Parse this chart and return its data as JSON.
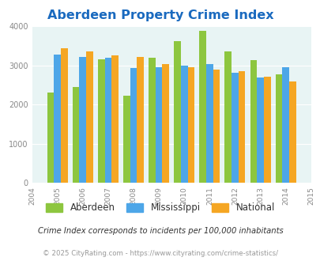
{
  "title": "Aberdeen Property Crime Index",
  "years": [
    2005,
    2006,
    2007,
    2008,
    2009,
    2010,
    2011,
    2012,
    2013,
    2014
  ],
  "aberdeen": [
    2300,
    2450,
    3150,
    2220,
    3200,
    3620,
    3880,
    3350,
    3130,
    2770
  ],
  "mississippi": [
    3280,
    3210,
    3190,
    2930,
    2950,
    2980,
    3040,
    2800,
    2690,
    2940
  ],
  "national": [
    3430,
    3360,
    3260,
    3210,
    3040,
    2940,
    2890,
    2850,
    2700,
    2580
  ],
  "color_aberdeen": "#8dc63f",
  "color_mississippi": "#4da6e8",
  "color_national": "#f5a623",
  "ylim": [
    0,
    4000
  ],
  "yticks": [
    0,
    1000,
    2000,
    3000,
    4000
  ],
  "bg_color": "#e8f4f4",
  "legend_labels": [
    "Aberdeen",
    "Mississippi",
    "National"
  ],
  "footnote1": "Crime Index corresponds to incidents per 100,000 inhabitants",
  "footnote2": "© 2025 CityRating.com - https://www.cityrating.com/crime-statistics/",
  "title_color": "#1a6abf",
  "footnote1_color": "#333333",
  "footnote2_color": "#999999",
  "tick_color": "#888888"
}
